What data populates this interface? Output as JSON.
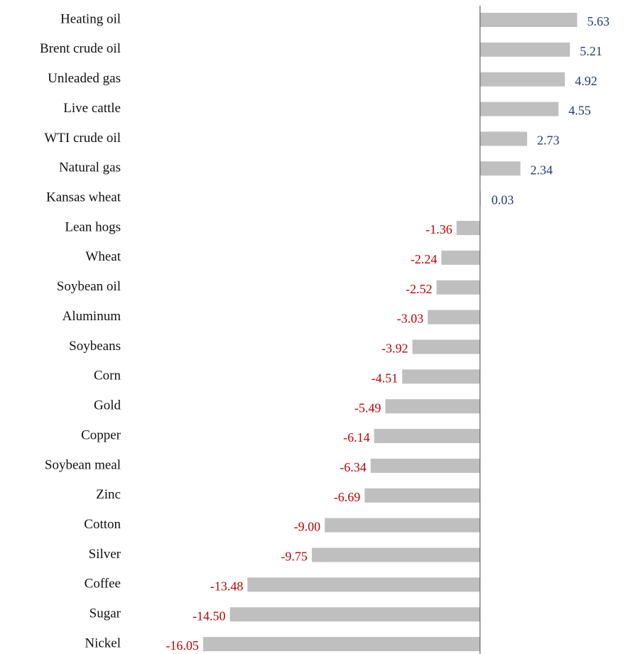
{
  "chart_data": {
    "type": "barh",
    "categories": [
      "Heating oil",
      "Brent crude oil",
      "Unleaded gas",
      "Live cattle",
      "WTI crude oil",
      "Natural gas",
      "Kansas wheat",
      "Lean hogs",
      "Wheat",
      "Soybean oil",
      "Aluminum",
      "Soybeans",
      "Corn",
      "Gold",
      "Copper",
      "Soybean meal",
      "Zinc",
      "Cotton",
      "Silver",
      "Coffee",
      "Sugar",
      "Nickel"
    ],
    "values": [
      5.63,
      5.21,
      4.92,
      4.55,
      2.73,
      2.34,
      0.03,
      -1.36,
      -2.24,
      -2.52,
      -3.03,
      -3.92,
      -4.51,
      -5.49,
      -6.14,
      -6.34,
      -6.69,
      -9.0,
      -9.75,
      -13.48,
      -14.5,
      -16.05
    ],
    "value_labels": [
      "5.63",
      "5.21",
      "4.92",
      "4.55",
      "2.73",
      "2.34",
      "0.03",
      "-1.36",
      "-2.24",
      "-2.52",
      "-3.03",
      "-3.92",
      "-4.51",
      "-5.49",
      "-6.14",
      "-6.34",
      "-6.69",
      "-9.00",
      "-9.75",
      "-13.48",
      "-14.50",
      "-16.05"
    ],
    "xlim": [
      -20,
      8
    ],
    "color": "#bfbfbf",
    "positive_label_color": "#1f3a78",
    "negative_label_color": "#c00000"
  }
}
